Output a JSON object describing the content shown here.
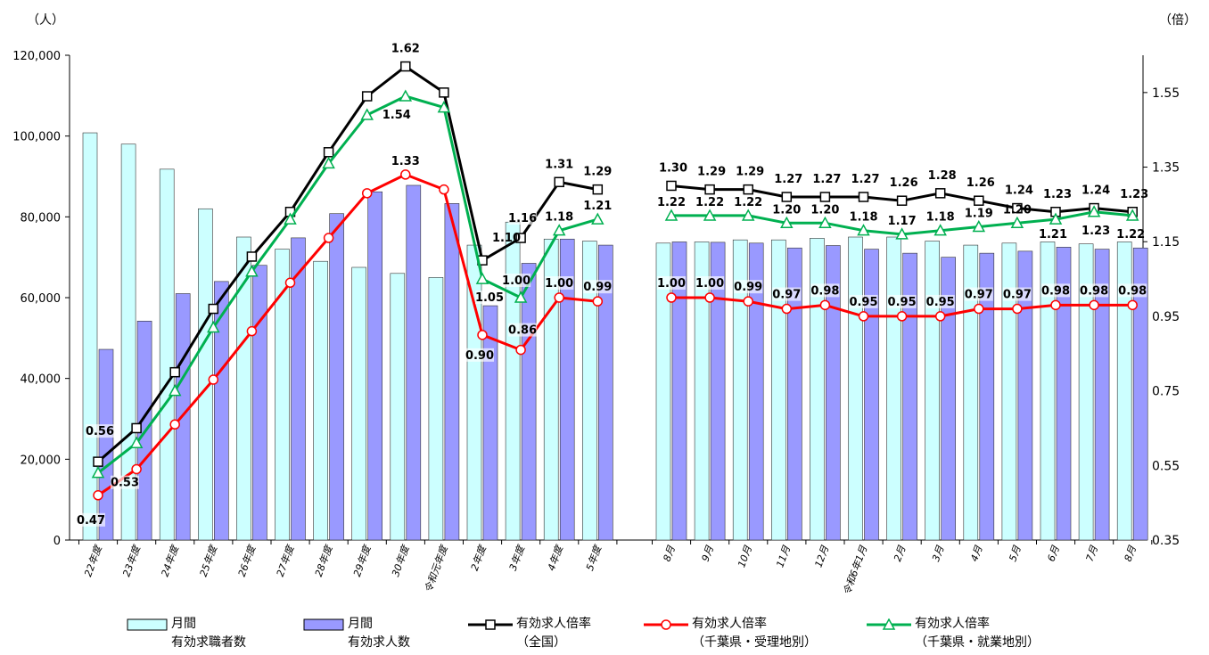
{
  "chart_data": {
    "type": "bar+line",
    "left_axis_unit": "（人）",
    "right_axis_unit": "（倍）",
    "left_ticks": [
      "0",
      "20,000",
      "40,000",
      "60,000",
      "80,000",
      "100,000",
      "120,000"
    ],
    "left_ylim": [
      0,
      120000
    ],
    "right_ticks": [
      "0.35",
      "0.55",
      "0.75",
      "0.95",
      "1.15",
      "1.35",
      "1.55"
    ],
    "right_ylim": [
      0.35,
      1.65
    ],
    "categories": [
      "22年度",
      "23年度",
      "24年度",
      "25年度",
      "26年度",
      "27年度",
      "28年度",
      "29年度",
      "30年度",
      "令和元年度",
      "2年度",
      "3年度",
      "4年度",
      "5年度",
      "8月",
      "9月",
      "10月",
      "11月",
      "12月",
      "令和6年1月",
      "2月",
      "3月",
      "4月",
      "5月",
      "6月",
      "7月",
      "8月"
    ],
    "bar_series": [
      {
        "name": "月間 有効求職者数",
        "color": "#ccffff",
        "values": [
          100800,
          98000,
          91800,
          82000,
          75000,
          72000,
          69000,
          67500,
          66000,
          65000,
          73000,
          78700,
          74500,
          74000,
          73500,
          73800,
          74300,
          74300,
          74700,
          75000,
          75000,
          74000,
          73000,
          73500,
          73800,
          73300,
          73800
        ]
      },
      {
        "name": "月間 有効求人数",
        "color": "#9999ff",
        "values": [
          47200,
          54200,
          61000,
          64000,
          68000,
          74800,
          80800,
          86200,
          87800,
          83300,
          58000,
          68500,
          74500,
          73000,
          73800,
          73700,
          73500,
          72300,
          72900,
          72000,
          71000,
          70000,
          71000,
          71500,
          72500,
          72000,
          72300
        ]
      }
    ],
    "line_series": [
      {
        "name": "有効求人倍率 （全国）",
        "color": "#000000",
        "marker": "square",
        "values": [
          0.56,
          0.65,
          0.8,
          0.97,
          1.11,
          1.23,
          1.39,
          1.54,
          1.62,
          1.55,
          1.1,
          1.16,
          1.31,
          1.29,
          1.3,
          1.29,
          1.29,
          1.27,
          1.27,
          1.27,
          1.26,
          1.28,
          1.26,
          1.24,
          1.23,
          1.24,
          1.23
        ],
        "labels": [
          "0.56",
          "",
          "",
          "",
          "",
          "",
          "",
          "",
          "1.62",
          "",
          "1.10",
          "1.16",
          "1.31",
          "1.29",
          "1.30",
          "1.29",
          "1.29",
          "1.27",
          "1.27",
          "1.27",
          "1.26",
          "1.28",
          "1.26",
          "1.24",
          "1.23",
          "1.24",
          "1.23"
        ]
      },
      {
        "name": "有効求人倍率 （千葉県・受理地別）",
        "color": "#ff0000",
        "marker": "circle",
        "values": [
          0.47,
          0.54,
          0.66,
          0.78,
          0.91,
          1.04,
          1.16,
          1.28,
          1.33,
          1.29,
          0.9,
          0.86,
          1.0,
          0.99,
          1.0,
          1.0,
          0.99,
          0.97,
          0.98,
          0.95,
          0.95,
          0.95,
          0.97,
          0.97,
          0.98,
          0.98,
          0.98
        ],
        "labels": [
          "0.47",
          "",
          "",
          "",
          "",
          "",
          "",
          "",
          "1.33",
          "",
          "0.90",
          "0.86",
          "1.00",
          "0.99",
          "1.00",
          "1.00",
          "0.99",
          "0.97",
          "0.98",
          "0.95",
          "0.95",
          "0.95",
          "0.97",
          "0.97",
          "0.98",
          "0.98",
          "0.98"
        ]
      },
      {
        "name": "有効求人倍率 （千葉県・就業地別）",
        "color": "#00b050",
        "marker": "triangle",
        "values": [
          0.53,
          0.61,
          0.75,
          0.92,
          1.07,
          1.21,
          1.36,
          1.49,
          1.54,
          1.51,
          1.05,
          1.0,
          1.18,
          1.21,
          1.22,
          1.22,
          1.22,
          1.2,
          1.2,
          1.18,
          1.17,
          1.18,
          1.19,
          1.2,
          1.21,
          1.23,
          1.22
        ],
        "labels": [
          "0.53",
          "",
          "",
          "",
          "",
          "",
          "",
          "",
          "1.54",
          "",
          "1.05",
          "1.00",
          "1.18",
          "1.21",
          "1.22",
          "1.22",
          "1.22",
          "1.20",
          "1.20",
          "1.18",
          "1.17",
          "1.18",
          "1.19",
          "1.20",
          "1.21",
          "1.23",
          "1.22"
        ]
      }
    ],
    "grid": false,
    "legend_position": "bottom"
  },
  "legend": [
    {
      "line1": "月間",
      "line2": "有効求職者数"
    },
    {
      "line1": "月間",
      "line2": "有効求人数"
    },
    {
      "line1": "有効求人倍率",
      "line2": "（全国）"
    },
    {
      "line1": "有効求人倍率",
      "line2": "（千葉県・受理地別）"
    },
    {
      "line1": "有効求人倍率",
      "line2": "（千葉県・就業地別）"
    }
  ]
}
